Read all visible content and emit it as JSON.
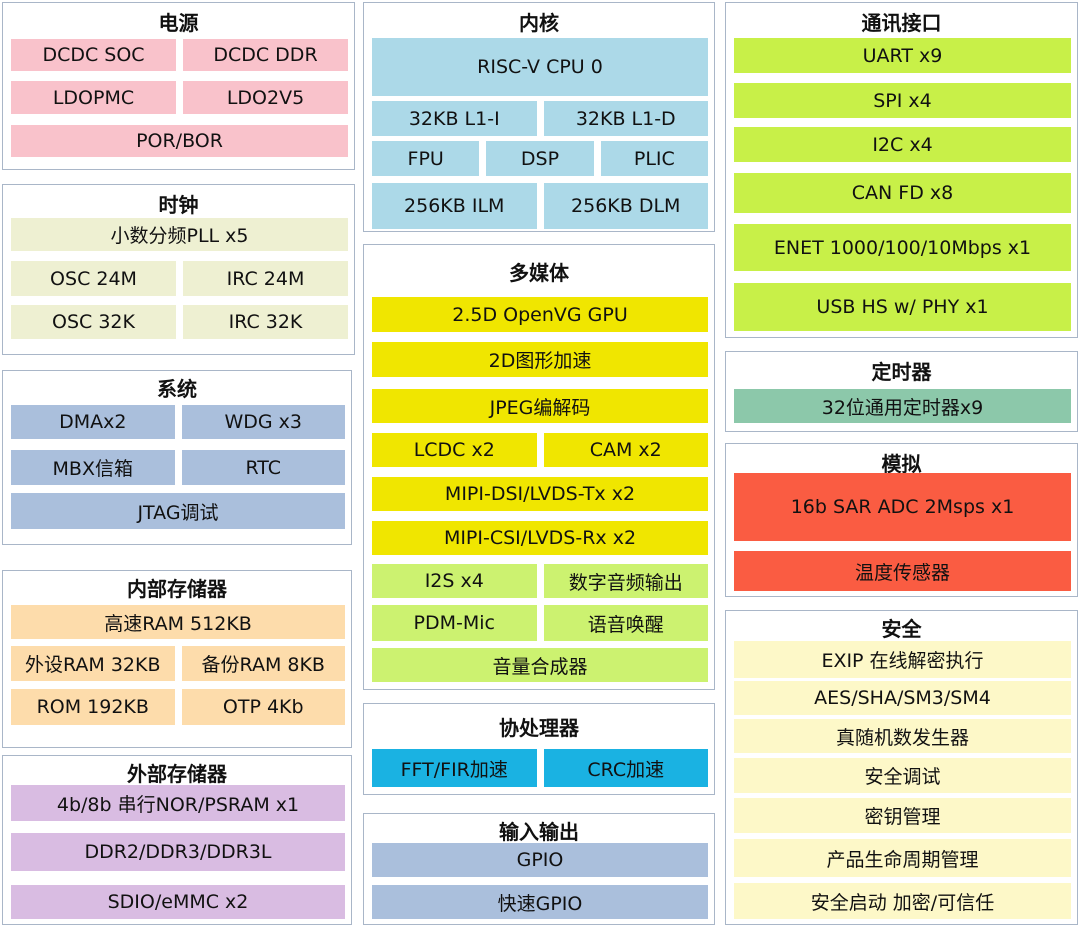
{
  "sections": [
    {
      "title": "电源",
      "rows": [
        {
          "color": "#f9c2cb",
          "items": [
            "DCDC SOC",
            "DCDC DDR"
          ]
        },
        {
          "color": "#f9c2cb",
          "items": [
            "LDOPMC",
            "LDO2V5"
          ]
        },
        {
          "color": "#f9c2cb",
          "items": [
            "POR/BOR"
          ]
        }
      ]
    },
    {
      "title": "时钟",
      "rows": [
        {
          "color": "#eef0d2",
          "items": [
            "小数分频PLL x5"
          ]
        },
        {
          "color": "#eef0d2",
          "items": [
            "OSC 24M",
            "IRC 24M"
          ]
        },
        {
          "color": "#eef0d2",
          "items": [
            "OSC 32K",
            "IRC 32K"
          ]
        }
      ]
    },
    {
      "title": "系统",
      "rows": [
        {
          "color": "#aabfdc",
          "items": [
            "DMAx2",
            "WDG x3"
          ]
        },
        {
          "color": "#aabfdc",
          "items": [
            "MBX信箱",
            "RTC"
          ]
        },
        {
          "color": "#aabfdc",
          "items": [
            "JTAG调试"
          ]
        }
      ]
    },
    {
      "title": "内部存储器",
      "rows": [
        {
          "color": "#fddcab",
          "items": [
            "高速RAM 512KB"
          ]
        },
        {
          "color": "#fddcab",
          "items": [
            "外设RAM 32KB",
            "备份RAM 8KB"
          ]
        },
        {
          "color": "#fddcab",
          "items": [
            "ROM 192KB",
            "OTP 4Kb"
          ]
        }
      ]
    },
    {
      "title": "外部存储器",
      "rows": [
        {
          "color": "#d9bce2",
          "items": [
            "4b/8b 串行NOR/PSRAM x1"
          ]
        },
        {
          "color": "#d9bce2",
          "items": [
            "DDR2/DDR3/DDR3L"
          ]
        },
        {
          "color": "#d9bce2",
          "items": [
            "SDIO/eMMC x2"
          ]
        }
      ]
    },
    {
      "title": "内核",
      "rows": [
        {
          "color": "#acd9e8",
          "items": [
            "RISC-V CPU 0"
          ]
        },
        {
          "color": "#acd9e8",
          "items": [
            "32KB L1-I",
            "32KB L1-D"
          ]
        },
        {
          "color": "#acd9e8",
          "items": [
            "FPU",
            "DSP",
            "PLIC"
          ]
        },
        {
          "color": "#acd9e8",
          "items": [
            "256KB ILM",
            "256KB DLM"
          ]
        }
      ]
    },
    {
      "title": "多媒体",
      "rows": [
        {
          "color": "#f0e600",
          "items": [
            "2.5D OpenVG GPU"
          ]
        },
        {
          "color": "#f0e600",
          "items": [
            "2D图形加速"
          ]
        },
        {
          "color": "#f0e600",
          "items": [
            "JPEG编解码"
          ]
        },
        {
          "color": "#f0e600",
          "items": [
            "LCDC x2",
            "CAM x2"
          ]
        },
        {
          "color": "#f0e600",
          "items": [
            "MIPI-DSI/LVDS-Tx x2"
          ]
        },
        {
          "color": "#f0e600",
          "items": [
            "MIPI-CSI/LVDS-Rx x2"
          ]
        },
        {
          "color": "#ccf270",
          "items": [
            "I2S x4",
            "数字音频输出"
          ]
        },
        {
          "color": "#ccf270",
          "items": [
            "PDM-Mic",
            "语音唤醒"
          ]
        },
        {
          "color": "#ccf270",
          "items": [
            "音量合成器"
          ]
        }
      ]
    },
    {
      "title": "协处理器",
      "rows": [
        {
          "color": "#1ab2e2",
          "items": [
            "FFT/FIR加速",
            "CRC加速"
          ]
        }
      ]
    },
    {
      "title": "输入输出",
      "rows": [
        {
          "color": "#aabfdc",
          "items": [
            "GPIO"
          ]
        },
        {
          "color": "#aabfdc",
          "items": [
            "快速GPIO"
          ]
        }
      ]
    },
    {
      "title": "通讯接口",
      "rows": [
        {
          "color": "#c8f048",
          "items": [
            "UART x9"
          ]
        },
        {
          "color": "#c8f048",
          "items": [
            "SPI x4"
          ]
        },
        {
          "color": "#c8f048",
          "items": [
            "I2C x4"
          ]
        },
        {
          "color": "#c8f048",
          "items": [
            "CAN FD x8"
          ]
        },
        {
          "color": "#c8f048",
          "items": [
            "ENET 1000/100/10Mbps x1"
          ]
        },
        {
          "color": "#c8f048",
          "items": [
            "USB HS w/ PHY x1"
          ]
        }
      ]
    },
    {
      "title": "定时器",
      "rows": [
        {
          "color": "#8cc8aa",
          "items": [
            "32位通用定时器x9"
          ]
        }
      ]
    },
    {
      "title": "模拟",
      "rows": [
        {
          "color": "#fa5c42",
          "items": [
            "16b SAR ADC 2Msps x1"
          ]
        },
        {
          "color": "#fa5c42",
          "items": [
            "温度传感器"
          ]
        }
      ]
    },
    {
      "title": "安全",
      "rows": [
        {
          "color": "#fdf8c8",
          "items": [
            "EXIP 在线解密执行"
          ]
        },
        {
          "color": "#fdf8c8",
          "items": [
            "AES/SHA/SM3/SM4"
          ]
        },
        {
          "color": "#fdf8c8",
          "items": [
            "真随机数发生器"
          ]
        },
        {
          "color": "#fdf8c8",
          "items": [
            "安全调试"
          ]
        },
        {
          "color": "#fdf8c8",
          "items": [
            "密钥管理"
          ]
        },
        {
          "color": "#fdf8c8",
          "items": [
            "产品生命周期管理"
          ]
        },
        {
          "color": "#fdf8c8",
          "items": [
            "安全启动 加密/可信任"
          ]
        }
      ]
    }
  ]
}
